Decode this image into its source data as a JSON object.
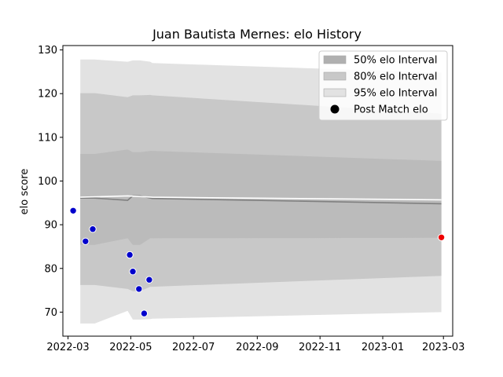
{
  "chart_data": {
    "type": "line",
    "title": "Juan Bautista Mernes: elo History",
    "xlabel": "",
    "ylabel": "elo score",
    "x_ticks": [
      "2022-03",
      "2022-05",
      "2022-07",
      "2022-09",
      "2022-11",
      "2023-01",
      "2023-03"
    ],
    "y_ticks": [
      70,
      80,
      90,
      100,
      110,
      120,
      130
    ],
    "ylim": [
      64.5,
      131
    ],
    "xlim": [
      "2022-02-24",
      "2023-03-10"
    ],
    "legend_position": "top-right",
    "legend": [
      {
        "label": "50% elo Interval",
        "color": "#b0b0b0",
        "kind": "patch"
      },
      {
        "label": "80% elo Interval",
        "color": "#c8c8c8",
        "kind": "patch"
      },
      {
        "label": "95% elo Interval",
        "color": "#e2e2e2",
        "kind": "patch"
      },
      {
        "label": "Post Match elo",
        "color": "#000000",
        "kind": "marker"
      }
    ],
    "band_dates": [
      "2022-03-13",
      "2022-03-27",
      "2022-04-28",
      "2022-05-03",
      "2022-05-10",
      "2022-05-20",
      "2022-05-22",
      "2023-02-27"
    ],
    "bands": {
      "p95": {
        "upper": [
          127.8,
          127.8,
          127.3,
          127.6,
          127.6,
          127.3,
          127.0,
          124.8
        ],
        "lower": [
          67.4,
          67.4,
          70.3,
          68.3,
          68.3,
          68.4,
          68.5,
          70.0
        ]
      },
      "p80": {
        "upper": [
          120.1,
          120.1,
          119.2,
          119.6,
          119.6,
          119.7,
          119.6,
          115.4
        ],
        "lower": [
          76.2,
          76.2,
          75.3,
          74.8,
          74.8,
          75.8,
          75.8,
          78.3
        ]
      },
      "p50": {
        "upper": [
          106.2,
          106.2,
          107.2,
          106.6,
          106.6,
          106.9,
          106.9,
          104.6
        ],
        "lower": [
          85.4,
          85.4,
          86.9,
          85.4,
          85.4,
          86.9,
          86.9,
          87.0
        ]
      }
    },
    "mean_line": {
      "dates": [
        "2022-03-13",
        "2022-03-27",
        "2022-04-28",
        "2022-05-03",
        "2022-05-10",
        "2022-05-20",
        "2022-05-22",
        "2023-02-27"
      ],
      "values": [
        96.1,
        96.1,
        95.6,
        96.6,
        96.6,
        96.1,
        96.0,
        94.8
      ],
      "color": "#808080"
    },
    "white_line": {
      "dates": [
        "2022-03-13",
        "2022-04-28",
        "2022-05-22",
        "2023-02-27"
      ],
      "values": [
        96.3,
        96.6,
        96.3,
        95.7
      ],
      "color": "#ffffff"
    },
    "series": [
      {
        "name": "Post Match elo",
        "color": "#0000cc",
        "points": [
          {
            "x": "2022-03-06",
            "y": 93.2
          },
          {
            "x": "2022-03-18",
            "y": 86.2
          },
          {
            "x": "2022-03-25",
            "y": 89.0
          },
          {
            "x": "2022-04-30",
            "y": 83.1
          },
          {
            "x": "2022-05-03",
            "y": 79.3
          },
          {
            "x": "2022-05-09",
            "y": 75.3
          },
          {
            "x": "2022-05-14",
            "y": 69.7
          },
          {
            "x": "2022-05-19",
            "y": 77.4
          }
        ]
      },
      {
        "name": "latest",
        "color": "#ee0000",
        "points": [
          {
            "x": "2023-02-27",
            "y": 87.1
          }
        ]
      }
    ]
  }
}
